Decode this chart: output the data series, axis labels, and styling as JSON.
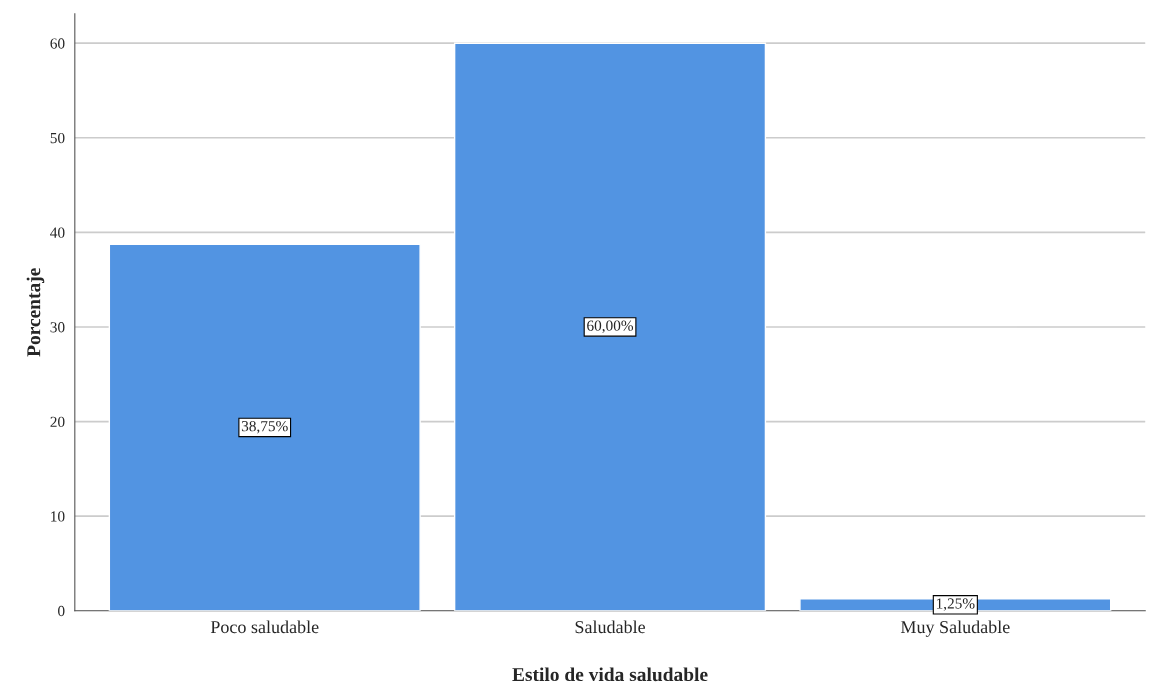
{
  "chart_data": {
    "type": "bar",
    "xlabel": "Estilo de vida saludable",
    "ylabel": "Porcentaje",
    "categories": [
      "Poco saludable",
      "Saludable",
      "Muy Saludable"
    ],
    "values": [
      38.75,
      60.0,
      1.25
    ],
    "value_labels": [
      "38,75%",
      "60,00%",
      "1,25%"
    ],
    "color": "#5294e2",
    "ylim": [
      0,
      63.1
    ],
    "yticks": [
      0,
      10,
      20,
      30,
      40,
      50,
      60
    ],
    "grid": "y",
    "legend": false
  }
}
